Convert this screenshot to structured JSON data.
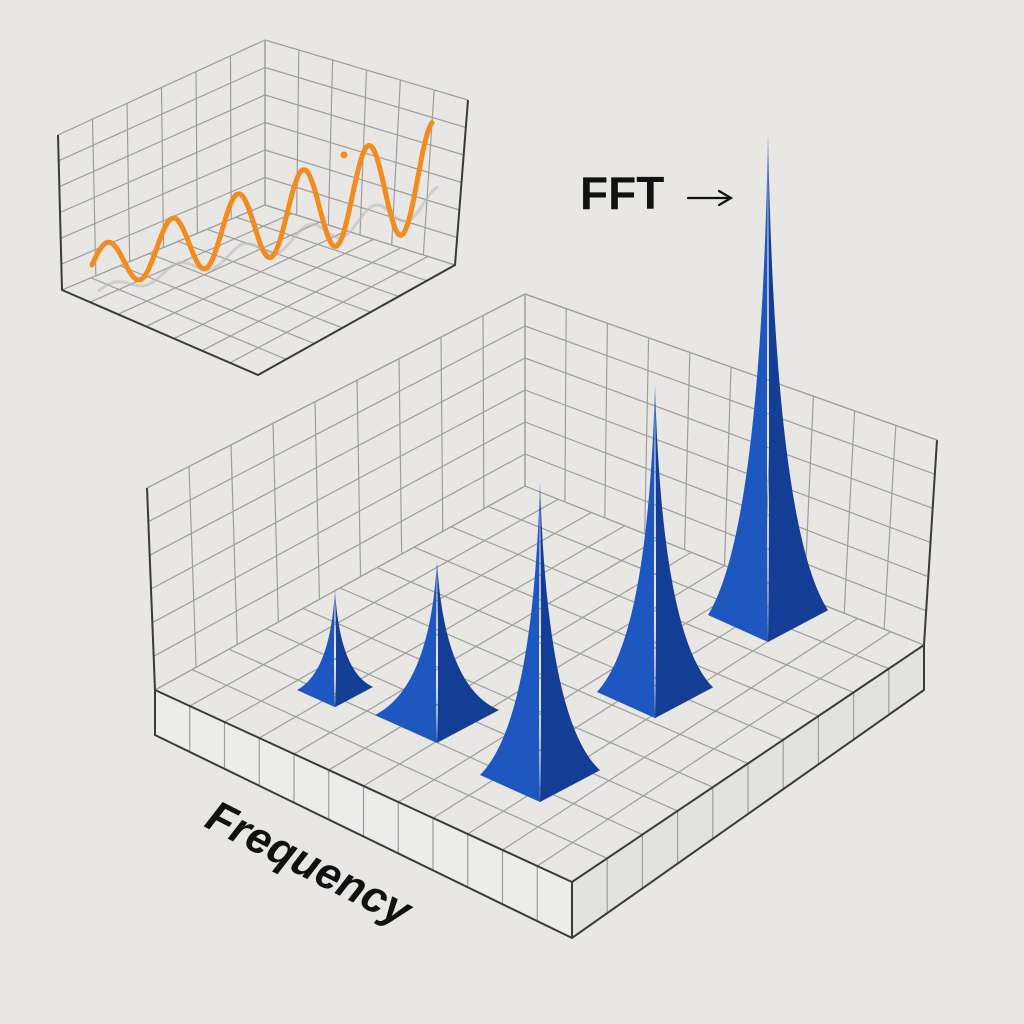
{
  "labels": {
    "transform": "FFT",
    "frequency_axis": "Frequency"
  },
  "colors": {
    "background": "#e8e7e4",
    "signal": "#f28c1e",
    "spectrum_side": "#1f57c0",
    "spectrum_dark": "#143d96",
    "grid": "#9d9d9d",
    "frame": "#3a3a3a"
  },
  "icons": {
    "transform_arrow": "right-arrow-icon"
  },
  "time_signal": {
    "type": "sinusoid",
    "cycles": 5.2,
    "amplitude_growth": "increasing"
  },
  "spectrum_peaks": [
    {
      "index": 1,
      "relative_height": 0.21
    },
    {
      "index": 2,
      "relative_height": 0.32
    },
    {
      "index": 3,
      "relative_height": 0.61
    },
    {
      "index": 4,
      "relative_height": 0.64
    },
    {
      "index": 5,
      "relative_height": 1.0
    }
  ]
}
